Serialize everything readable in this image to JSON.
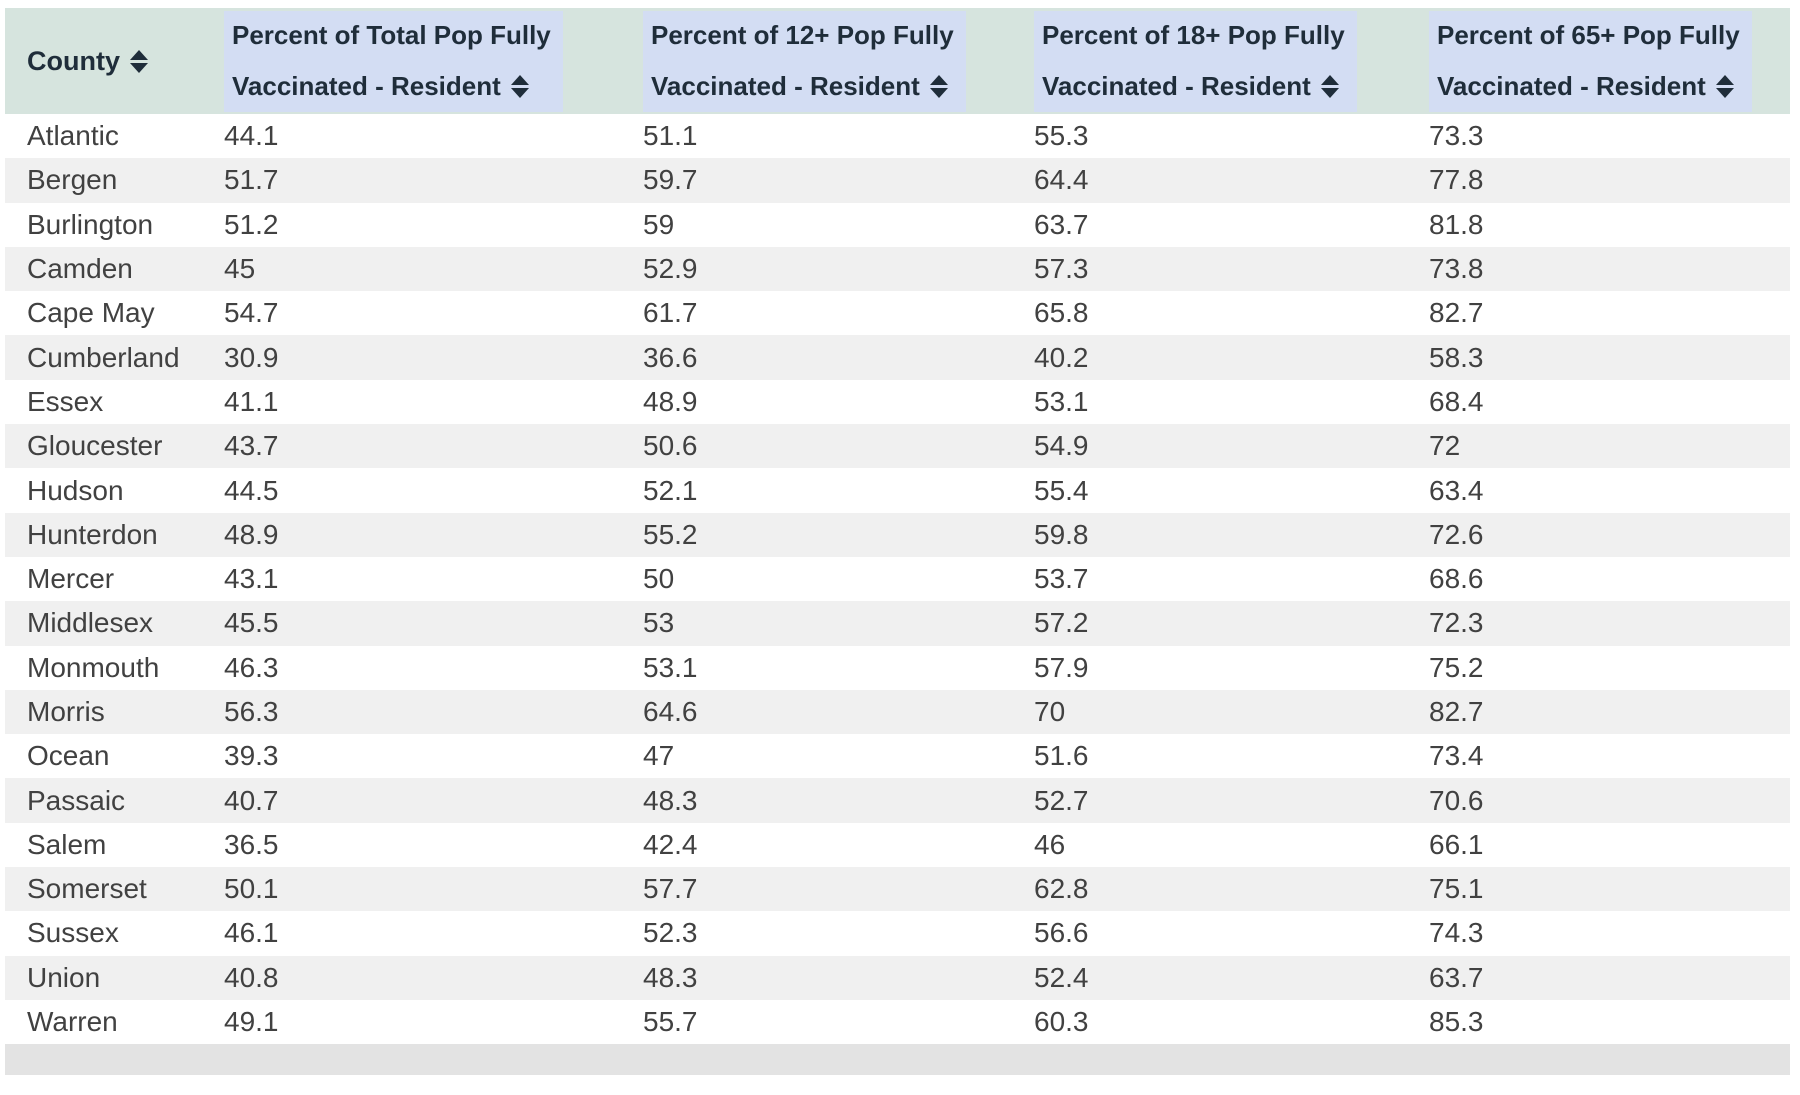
{
  "header": {
    "county": {
      "label": "County"
    },
    "percent_columns": [
      {
        "line1": "Percent of Total Pop Fully",
        "line2": "Vaccinated - Resident"
      },
      {
        "line1": "Percent of 12+ Pop Fully",
        "line2": "Vaccinated - Resident"
      },
      {
        "line1": "Percent of 18+ Pop Fully",
        "line2": "Vaccinated - Resident"
      },
      {
        "line1": "Percent of 65+ Pop Fully",
        "line2": "Vaccinated - Resident"
      }
    ]
  },
  "rows": [
    [
      "Atlantic",
      "44.1",
      "51.1",
      "55.3",
      "73.3"
    ],
    [
      "Bergen",
      "51.7",
      "59.7",
      "64.4",
      "77.8"
    ],
    [
      "Burlington",
      "51.2",
      "59",
      "63.7",
      "81.8"
    ],
    [
      "Camden",
      "45",
      "52.9",
      "57.3",
      "73.8"
    ],
    [
      "Cape May",
      "54.7",
      "61.7",
      "65.8",
      "82.7"
    ],
    [
      "Cumberland",
      "30.9",
      "36.6",
      "40.2",
      "58.3"
    ],
    [
      "Essex",
      "41.1",
      "48.9",
      "53.1",
      "68.4"
    ],
    [
      "Gloucester",
      "43.7",
      "50.6",
      "54.9",
      "72"
    ],
    [
      "Hudson",
      "44.5",
      "52.1",
      "55.4",
      "63.4"
    ],
    [
      "Hunterdon",
      "48.9",
      "55.2",
      "59.8",
      "72.6"
    ],
    [
      "Mercer",
      "43.1",
      "50",
      "53.7",
      "68.6"
    ],
    [
      "Middlesex",
      "45.5",
      "53",
      "57.2",
      "72.3"
    ],
    [
      "Monmouth",
      "46.3",
      "53.1",
      "57.9",
      "75.2"
    ],
    [
      "Morris",
      "56.3",
      "64.6",
      "70",
      "82.7"
    ],
    [
      "Ocean",
      "39.3",
      "47",
      "51.6",
      "73.4"
    ],
    [
      "Passaic",
      "40.7",
      "48.3",
      "52.7",
      "70.6"
    ],
    [
      "Salem",
      "36.5",
      "42.4",
      "46",
      "66.1"
    ],
    [
      "Somerset",
      "50.1",
      "57.7",
      "62.8",
      "75.1"
    ],
    [
      "Sussex",
      "46.1",
      "52.3",
      "56.6",
      "74.3"
    ],
    [
      "Union",
      "40.8",
      "48.3",
      "52.4",
      "63.7"
    ],
    [
      "Warren",
      "49.1",
      "55.7",
      "60.3",
      "85.3"
    ]
  ],
  "icons": {
    "sort": "sort-updown-icon"
  },
  "colors": {
    "header_bg": "#d6e4de",
    "header_text_highlight": "#d3ddf3",
    "header_text": "#1f2d3a",
    "row_bg": "#ffffff",
    "row_alt_bg": "#f0f0f0",
    "body_text": "#414141",
    "footer_bar": "#e3e3e3"
  },
  "chart_data": {
    "type": "table",
    "title": "",
    "columns": [
      "County",
      "Percent of Total Pop Fully Vaccinated - Resident",
      "Percent of 12+ Pop Fully Vaccinated - Resident",
      "Percent of 18+ Pop Fully Vaccinated - Resident",
      "Percent of 65+ Pop Fully Vaccinated - Resident"
    ],
    "rows_numeric": [
      [
        "Atlantic",
        44.1,
        51.1,
        55.3,
        73.3
      ],
      [
        "Bergen",
        51.7,
        59.7,
        64.4,
        77.8
      ],
      [
        "Burlington",
        51.2,
        59,
        63.7,
        81.8
      ],
      [
        "Camden",
        45,
        52.9,
        57.3,
        73.8
      ],
      [
        "Cape May",
        54.7,
        61.7,
        65.8,
        82.7
      ],
      [
        "Cumberland",
        30.9,
        36.6,
        40.2,
        58.3
      ],
      [
        "Essex",
        41.1,
        48.9,
        53.1,
        68.4
      ],
      [
        "Gloucester",
        43.7,
        50.6,
        54.9,
        72
      ],
      [
        "Hudson",
        44.5,
        52.1,
        55.4,
        63.4
      ],
      [
        "Hunterdon",
        48.9,
        55.2,
        59.8,
        72.6
      ],
      [
        "Mercer",
        43.1,
        50,
        53.7,
        68.6
      ],
      [
        "Middlesex",
        45.5,
        53,
        57.2,
        72.3
      ],
      [
        "Monmouth",
        46.3,
        53.1,
        57.9,
        75.2
      ],
      [
        "Morris",
        56.3,
        64.6,
        70,
        82.7
      ],
      [
        "Ocean",
        39.3,
        47,
        51.6,
        73.4
      ],
      [
        "Passaic",
        40.7,
        48.3,
        52.7,
        70.6
      ],
      [
        "Salem",
        36.5,
        42.4,
        46,
        66.1
      ],
      [
        "Somerset",
        50.1,
        57.7,
        62.8,
        75.1
      ],
      [
        "Sussex",
        46.1,
        52.3,
        56.6,
        74.3
      ],
      [
        "Union",
        40.8,
        48.3,
        52.4,
        63.7
      ],
      [
        "Warren",
        49.1,
        55.7,
        60.3,
        85.3
      ]
    ]
  }
}
